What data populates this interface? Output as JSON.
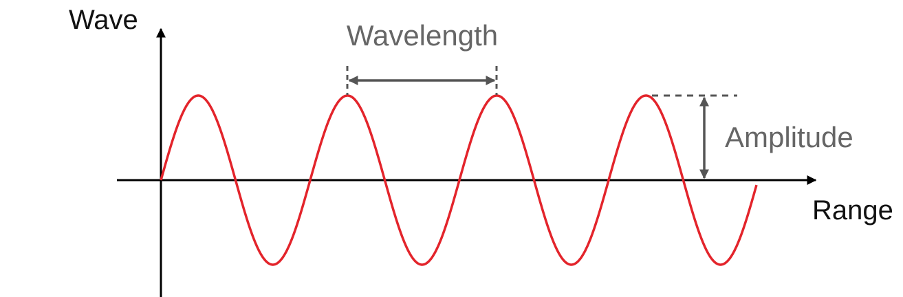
{
  "labels": {
    "y_axis": "Wave",
    "x_axis": "Range",
    "wavelength": "Wavelength",
    "amplitude": "Amplitude"
  },
  "wave": {
    "cycles": 4,
    "color": "#e3242b"
  },
  "colors": {
    "axis": "#000000",
    "annotation": "#555555",
    "annotation_text": "#666666"
  }
}
